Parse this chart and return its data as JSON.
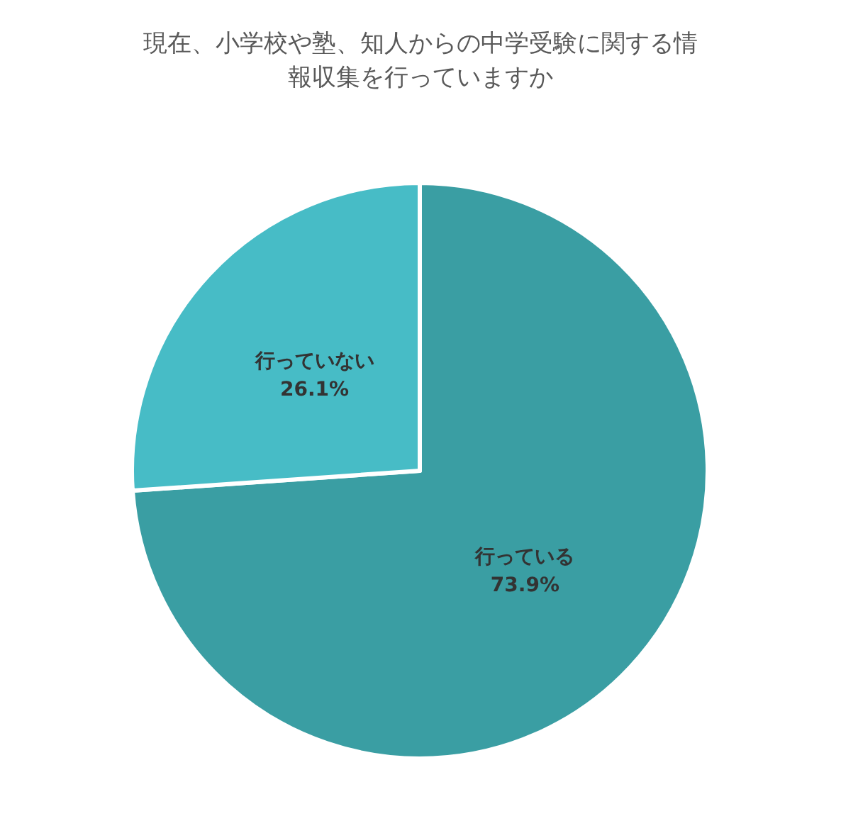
{
  "chart_data": {
    "type": "pie",
    "title": "現在、小学校や塾、知人からの中学受験に関する情報収集を行っていますか",
    "categories": [
      "行っている",
      "行っていない"
    ],
    "values": [
      73.9,
      26.1
    ],
    "colors": [
      "#3a9ea3",
      "#47bcc6"
    ],
    "value_labels": [
      "73.9%",
      "26.1%"
    ],
    "legend": false
  }
}
